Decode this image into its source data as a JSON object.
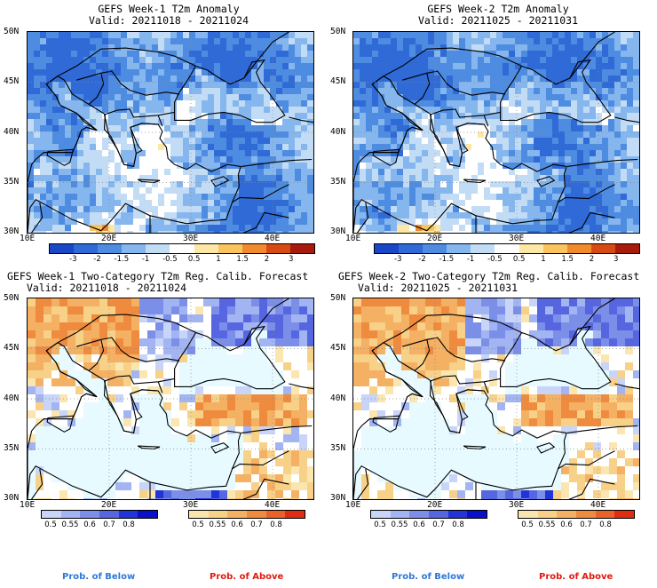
{
  "panels": [
    {
      "title": "GEFS Week-1 T2m Anomaly",
      "valid": "Valid: 20211018 - 20211024"
    },
    {
      "title": "GEFS Week-2 T2m Anomaly",
      "valid": "Valid: 20211025 - 20211031"
    },
    {
      "title": "GEFS Week-1 Two-Category T2m Reg. Calib. Forecast",
      "valid": "Valid: 20211018 - 20211024"
    },
    {
      "title": "GEFS Week-2 Two-Category T2m Reg. Calib. Forecast",
      "valid": "Valid: 20211025 - 20211031"
    }
  ],
  "axes": {
    "lat": [
      "50N",
      "45N",
      "40N",
      "35N",
      "30N"
    ],
    "lon": [
      "10E",
      "20E",
      "30E",
      "40E"
    ]
  },
  "anomaly_colorbar": {
    "ticks": [
      "-3",
      "-2",
      "-1.5",
      "-1",
      "-0.5",
      "0.5",
      "1",
      "1.5",
      "2",
      "3"
    ],
    "colors": [
      "#1a46c8",
      "#2f6ad6",
      "#4e8ce2",
      "#86b6ee",
      "#c3dcf6",
      "#ffffff",
      "#fde7a4",
      "#f9c45e",
      "#f08a2c",
      "#d84a14",
      "#a81a0c"
    ]
  },
  "prob_below": {
    "ticks": [
      "0.5",
      "0.55",
      "0.6",
      "0.7",
      "0.8"
    ],
    "colors": [
      "#c8d4f8",
      "#a3b4f2",
      "#7c8fe8",
      "#5566e0",
      "#2233d8",
      "#0a10c8"
    ],
    "label": "Prob. of Below",
    "label_color": "#2f78d8"
  },
  "prob_above": {
    "ticks": [
      "0.5",
      "0.55",
      "0.6",
      "0.7",
      "0.8"
    ],
    "colors": [
      "#fbe6b0",
      "#f8d188",
      "#f4b063",
      "#ef8b3e",
      "#e9622a",
      "#e02c12"
    ],
    "label": "Prob. of Above",
    "label_color": "#e01a10"
  },
  "chart_data": [
    {
      "type": "heatmap",
      "title": "GEFS Week-1 T2m Anomaly",
      "subtitle": "Valid: 20211018 - 20211024",
      "xlim": [
        10,
        45
      ],
      "ylim": [
        30,
        50
      ]
    },
    {
      "type": "heatmap",
      "title": "GEFS Week-2 T2m Anomaly",
      "subtitle": "Valid: 20211025 - 20211031",
      "xlim": [
        10,
        45
      ],
      "ylim": [
        30,
        50
      ]
    },
    {
      "type": "heatmap",
      "title": "GEFS Week-1 Two-Category T2m Reg. Calib. Forecast",
      "subtitle": "Valid: 20211018 - 20211024",
      "xlim": [
        10,
        45
      ],
      "ylim": [
        30,
        50
      ]
    },
    {
      "type": "heatmap",
      "title": "GEFS Week-2 Two-Category T2m Reg. Calib. Forecast",
      "subtitle": "Valid: 20211025 - 20211031",
      "xlim": [
        10,
        45
      ],
      "ylim": [
        30,
        50
      ]
    }
  ]
}
